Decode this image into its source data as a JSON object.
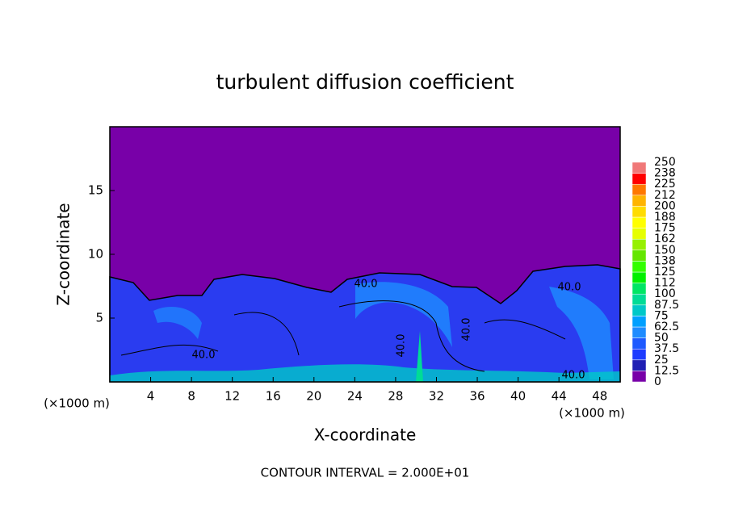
{
  "chart_data": {
    "type": "contour",
    "title": "turbulent diffusion coefficient",
    "x_label": "X-coordinate",
    "y_label": "Z-coordinate",
    "x_unit_labels": [
      "(×1000 m)",
      "(×1000 m)"
    ],
    "footnote": "CONTOUR INTERVAL = 2.000E+01",
    "xlim": [
      0,
      50
    ],
    "xticks": [
      4,
      8,
      12,
      16,
      20,
      24,
      28,
      32,
      36,
      40,
      44,
      48
    ],
    "ylim": [
      0,
      20
    ],
    "yticks": [
      5,
      10,
      15
    ],
    "contour_labels": [
      {
        "value": 40,
        "label": "40.0"
      },
      {
        "value": 40,
        "label": "40.0"
      },
      {
        "value": 40,
        "label": "40.0"
      },
      {
        "value": 40,
        "label": "40.0"
      },
      {
        "value": 40,
        "label": "40.0"
      },
      {
        "value": 40,
        "label": "40.0"
      }
    ],
    "colorbar": {
      "levels": [
        0,
        12.5,
        25,
        37.5,
        50,
        62.5,
        75,
        87.5,
        100,
        112,
        125,
        138,
        150,
        162,
        175,
        188,
        200,
        212,
        225,
        238,
        250
      ],
      "colors": [
        "#7800a8",
        "#2020b4",
        "#1e3cff",
        "#1e5aff",
        "#1e8cff",
        "#00a0ff",
        "#00c8c8",
        "#00dc96",
        "#00e664",
        "#00f000",
        "#32ff00",
        "#64e600",
        "#96f000",
        "#e6ff00",
        "#ffff00",
        "#ffdc00",
        "#ffb400",
        "#ff7800",
        "#ff0000",
        "#f07878"
      ]
    }
  }
}
